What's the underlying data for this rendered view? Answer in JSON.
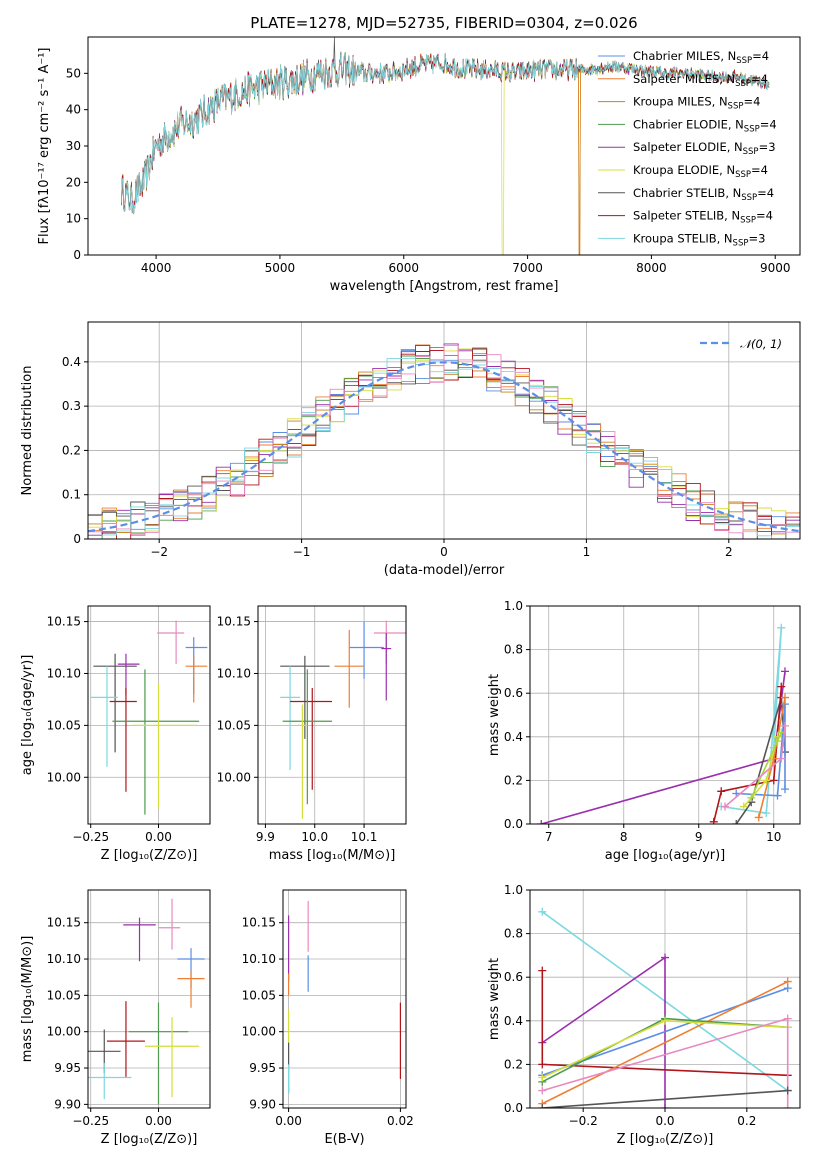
{
  "colors": {
    "Chabrier MILES": "#5b8ee6",
    "Salpeter MILES": "#ee7f33",
    "Kroupa MILES": "#c9821e",
    "Chabrier ELODIE": "#4e9a4e",
    "Salpeter ELODIE": "#9b2fae",
    "Kroupa ELODIE": "#d4de3c",
    "Chabrier STELIB": "#555555",
    "Salpeter STELIB": "#b0151b",
    "Kroupa STELIB": "#7dd8e0",
    "pink": "#e88ac0",
    "lime": "#a6d83a"
  },
  "chart_data": [
    {
      "id": "spectrum",
      "type": "line",
      "title": "PLATE=1278, MJD=52735, FIBERID=0304, z=0.026",
      "xlabel": "wavelength [Angstrom, rest frame]",
      "ylabel": "Flux [fλ10⁻¹⁷ erg cm⁻² s⁻¹ A⁻¹]",
      "xlim": [
        3450,
        9200
      ],
      "ylim": [
        0,
        60
      ],
      "xticks": [
        4000,
        5000,
        6000,
        7000,
        8000,
        9000
      ],
      "yticks": [
        0,
        10,
        20,
        30,
        40,
        50
      ],
      "legend_position": "top-right",
      "legend": [
        "Chabrier MILES, N_SSP=4",
        "Salpeter MILES, N_SSP=4",
        "Kroupa MILES, N_SSP=4",
        "Chabrier ELODIE, N_SSP=4",
        "Salpeter ELODIE, N_SSP=3",
        "Kroupa ELODIE, N_SSP=4",
        "Chabrier STELIB, N_SSP=4",
        "Salpeter STELIB, N_SSP=4",
        "Kroupa STELIB, N_SSP=3"
      ],
      "continuum": {
        "x": [
          3720,
          3800,
          3900,
          4000,
          4100,
          4200,
          4300,
          4500,
          4700,
          4900,
          5100,
          5300,
          5500,
          5700,
          5900,
          6100,
          6300,
          6500,
          6700,
          6900,
          7100,
          7300,
          7500,
          7700,
          7900,
          8100,
          8300,
          8500,
          8700,
          8950
        ],
        "y": [
          18,
          15,
          20,
          30,
          33,
          36,
          37,
          42,
          45,
          47,
          48,
          50,
          51,
          50,
          50,
          52,
          53,
          51,
          51,
          50,
          51,
          51,
          51,
          52,
          51,
          50,
          50,
          49,
          49,
          47
        ]
      }
    },
    {
      "id": "residuals",
      "type": "histogram",
      "xlabel": "(data-model)/error",
      "ylabel": "Normed distribution",
      "xlim": [
        -2.5,
        2.5
      ],
      "ylim": [
        0,
        0.49
      ],
      "xticks": [
        -2,
        -1,
        0,
        1,
        2
      ],
      "yticks": [
        0.0,
        0.1,
        0.2,
        0.3,
        0.4
      ],
      "legend_position": "top-right",
      "reference_curve": "N(0,1)",
      "legend_label": "𝒩(0, 1)"
    },
    {
      "id": "age-vs-Z",
      "type": "scatter",
      "xlabel": "Z [log₁₀(Z/Z⊙)]",
      "ylabel": "age  [log₁₀(age/yr)]",
      "xlim": [
        -0.26,
        0.19
      ],
      "ylim": [
        9.955,
        10.165
      ],
      "xticks": [
        -0.25,
        0.0
      ],
      "xticklabels": [
        "−0.25",
        "0.00"
      ],
      "yticks": [
        10.0,
        10.05,
        10.1,
        10.15
      ],
      "yticklabels": [
        "10.00",
        "10.05",
        "10.10",
        "10.15"
      ],
      "points": [
        {
          "c": "Chabrier MILES",
          "x": 0.13,
          "y": 10.125,
          "ex": [
            0.03,
            0.05
          ],
          "ey": [
            0.045,
            0.01
          ]
        },
        {
          "c": "Salpeter MILES",
          "x": 0.13,
          "y": 10.107,
          "ex": [
            0.03,
            0.05
          ],
          "ey": [
            0.035,
            0.01
          ]
        },
        {
          "c": "pink",
          "x": 0.065,
          "y": 10.139,
          "ex": [
            0.07,
            0.03
          ],
          "ey": [
            0.03,
            0.012
          ]
        },
        {
          "c": "Chabrier STELIB",
          "x": -0.16,
          "y": 10.107,
          "ex": [
            0.08,
            0.08
          ],
          "ey": [
            0.083,
            0.012
          ]
        },
        {
          "c": "Salpeter ELODIE",
          "x": -0.12,
          "y": 10.109,
          "ex": [
            0.03,
            0.05
          ],
          "ey": [
            0.03,
            0.01
          ]
        },
        {
          "c": "Kroupa STELIB",
          "x": -0.19,
          "y": 10.077,
          "ex": [
            0.06,
            0.04
          ],
          "ey": [
            0.067,
            0.03
          ]
        },
        {
          "c": "Salpeter STELIB",
          "x": -0.12,
          "y": 10.073,
          "ex": [
            0.06,
            0.04
          ],
          "ey": [
            0.087,
            0.013
          ]
        },
        {
          "c": "Chabrier ELODIE",
          "x": -0.05,
          "y": 10.054,
          "ex": [
            0.12,
            0.2
          ],
          "ey": [
            0.09,
            0.05
          ]
        },
        {
          "c": "Kroupa ELODIE",
          "x": 0.0,
          "y": 10.05,
          "ex": [
            0.1,
            0.14
          ],
          "ey": [
            0.08,
            0.04
          ]
        }
      ]
    },
    {
      "id": "age-vs-mass",
      "type": "scatter",
      "xlabel": "mass [log₁₀(M/M⊙)]",
      "ylabel": "",
      "xlim": [
        9.885,
        10.185
      ],
      "ylim": [
        9.955,
        10.165
      ],
      "xticks": [
        9.9,
        10.0,
        10.1
      ],
      "xticklabels": [
        "9.9",
        "10.0",
        "10.1"
      ],
      "yticks": [
        10.0,
        10.05,
        10.1,
        10.15
      ],
      "yticklabels": [
        "10.00",
        "10.05",
        "10.10",
        "10.15"
      ],
      "points": [
        {
          "c": "pink",
          "x": 10.145,
          "y": 10.139,
          "ex": [
            0.025,
            0.04
          ],
          "ey": [
            0.03,
            0.012
          ]
        },
        {
          "c": "Chabrier MILES",
          "x": 10.1,
          "y": 10.125,
          "ex": [
            0.03,
            0.04
          ],
          "ey": [
            0.03,
            0.025
          ]
        },
        {
          "c": "Salpeter ELODIE",
          "x": 10.145,
          "y": 10.124,
          "ex": [
            0.01,
            0.01
          ],
          "ey": [
            0.05,
            0.015
          ]
        },
        {
          "c": "Salpeter MILES",
          "x": 10.07,
          "y": 10.107,
          "ex": [
            0.03,
            0.03
          ],
          "ey": [
            0.04,
            0.035
          ]
        },
        {
          "c": "Chabrier STELIB",
          "x": 9.98,
          "y": 10.107,
          "ex": [
            0.05,
            0.05
          ],
          "ey": [
            0.07,
            0.01
          ]
        },
        {
          "c": "Kroupa STELIB",
          "x": 9.95,
          "y": 10.077,
          "ex": [
            0.02,
            0.02
          ],
          "ey": [
            0.07,
            0.03
          ]
        },
        {
          "c": "Salpeter STELIB",
          "x": 9.995,
          "y": 10.073,
          "ex": [
            0.045,
            0.04
          ],
          "ey": [
            0.085,
            0.013
          ]
        },
        {
          "c": "Chabrier ELODIE",
          "x": 9.985,
          "y": 10.054,
          "ex": [
            0.05,
            0.05
          ],
          "ey": [
            0.08,
            0.05
          ]
        },
        {
          "c": "Kroupa ELODIE",
          "x": 9.975,
          "y": 10.05,
          "ex": [
            0.01,
            0.01
          ],
          "ey": [
            0.09,
            0.02
          ]
        }
      ]
    },
    {
      "id": "weight-vs-age",
      "type": "line",
      "xlabel": "age  [log₁₀(age/yr)]",
      "ylabel": "mass weight",
      "xlim": [
        6.75,
        10.35
      ],
      "ylim": [
        0,
        1.0
      ],
      "xticks": [
        7,
        8,
        9,
        10
      ],
      "yticks": [
        0.0,
        0.2,
        0.4,
        0.6,
        0.8,
        1.0
      ],
      "yticklabels": [
        "0.0",
        "0.2",
        "0.4",
        "0.6",
        "0.8",
        "1.0"
      ],
      "series": [
        {
          "c": "Salpeter ELODIE",
          "x": [
            6.9,
            10.0,
            10.15
          ],
          "y": [
            0.0,
            0.3,
            0.7
          ]
        },
        {
          "c": "Kroupa STELIB",
          "x": [
            9.3,
            9.9,
            10.1,
            10.0
          ],
          "y": [
            0.08,
            0.05,
            0.9,
            0.35
          ]
        },
        {
          "c": "Chabrier STELIB",
          "x": [
            9.5,
            9.7,
            10.1,
            10.15
          ],
          "y": [
            0.0,
            0.1,
            0.58,
            0.33
          ]
        },
        {
          "c": "Salpeter STELIB",
          "x": [
            9.2,
            9.3,
            10.0,
            10.1
          ],
          "y": [
            0.01,
            0.15,
            0.2,
            0.63
          ]
        },
        {
          "c": "Chabrier MILES",
          "x": [
            9.5,
            10.05,
            10.15,
            10.15
          ],
          "y": [
            0.14,
            0.13,
            0.55,
            0.16
          ]
        },
        {
          "c": "Salpeter MILES",
          "x": [
            9.8,
            10.0,
            10.15
          ],
          "y": [
            0.03,
            0.3,
            0.58
          ]
        },
        {
          "c": "Kroupa ELODIE",
          "x": [
            9.6,
            9.9,
            10.05
          ],
          "y": [
            0.08,
            0.2,
            0.4
          ]
        },
        {
          "c": "lime",
          "x": [
            9.7,
            10.05,
            10.1
          ],
          "y": [
            0.12,
            0.38,
            0.42
          ]
        },
        {
          "c": "pink",
          "x": [
            9.35,
            10.1,
            10.15
          ],
          "y": [
            0.08,
            0.3,
            0.45
          ]
        }
      ]
    },
    {
      "id": "mass-vs-Z",
      "type": "scatter",
      "xlabel": "Z [log₁₀(Z/Z⊙)]",
      "ylabel": "mass [log₁₀(M/M⊙)]",
      "xlim": [
        -0.26,
        0.19
      ],
      "ylim": [
        9.895,
        10.195
      ],
      "xticks": [
        -0.25,
        0.0
      ],
      "xticklabels": [
        "−0.25",
        "0.00"
      ],
      "yticks": [
        9.9,
        9.95,
        10.0,
        10.05,
        10.1,
        10.15
      ],
      "yticklabels": [
        "9.90",
        "9.95",
        "10.00",
        "10.05",
        "10.10",
        "10.15"
      ],
      "points": [
        {
          "c": "Salpeter ELODIE",
          "x": -0.07,
          "y": 10.147,
          "ex": [
            0.06,
            0.06
          ],
          "ey": [
            0.05,
            0.01
          ]
        },
        {
          "c": "pink",
          "x": 0.05,
          "y": 10.143,
          "ex": [
            0.05,
            0.03
          ],
          "ey": [
            0.03,
            0.04
          ]
        },
        {
          "c": "Chabrier MILES",
          "x": 0.12,
          "y": 10.1,
          "ex": [
            0.05,
            0.05
          ],
          "ey": [
            0.04,
            0.015
          ]
        },
        {
          "c": "Salpeter MILES",
          "x": 0.12,
          "y": 10.073,
          "ex": [
            0.05,
            0.05
          ],
          "ey": [
            0.04,
            0.01
          ]
        },
        {
          "c": "Chabrier ELODIE",
          "x": 0.0,
          "y": 10.0,
          "ex": [
            0.11,
            0.11
          ],
          "ey": [
            0.1,
            0.04
          ]
        },
        {
          "c": "Kroupa ELODIE",
          "x": 0.05,
          "y": 9.98,
          "ex": [
            0.1,
            0.1
          ],
          "ey": [
            0.07,
            0.04
          ]
        },
        {
          "c": "Salpeter STELIB",
          "x": -0.12,
          "y": 9.987,
          "ex": [
            0.07,
            0.07
          ],
          "ey": [
            0.05,
            0.055
          ]
        },
        {
          "c": "Chabrier STELIB",
          "x": -0.2,
          "y": 9.973,
          "ex": [
            0.12,
            0.06
          ],
          "ey": [
            0.03,
            0.03
          ]
        },
        {
          "c": "Kroupa STELIB",
          "x": -0.2,
          "y": 9.937,
          "ex": [
            0.06,
            0.1
          ],
          "ey": [
            0.03,
            0.02
          ]
        }
      ]
    },
    {
      "id": "mass-vs-EBV",
      "type": "scatter",
      "xlabel": "E(B-V)",
      "ylabel": "",
      "xlim": [
        -0.001,
        0.021
      ],
      "ylim": [
        9.895,
        10.195
      ],
      "xticks": [
        0.0,
        0.02
      ],
      "xticklabels": [
        "0.00",
        "0.02"
      ],
      "yticks": [
        9.9,
        9.95,
        10.0,
        10.05,
        10.1,
        10.15
      ],
      "yticklabels": [
        "9.90",
        "9.95",
        "10.00",
        "10.05",
        "10.10",
        "10.15"
      ],
      "points": [
        {
          "c": "pink",
          "x": 0.0035,
          "y": 10.16,
          "ex": [
            0,
            0
          ],
          "ey": [
            0.05,
            0.02
          ]
        },
        {
          "c": "Salpeter ELODIE",
          "x": 0.0,
          "y": 10.12,
          "ex": [
            0,
            0
          ],
          "ey": [
            0.05,
            0.04
          ]
        },
        {
          "c": "Chabrier MILES",
          "x": 0.0035,
          "y": 10.085,
          "ex": [
            0,
            0
          ],
          "ey": [
            0.03,
            0.02
          ]
        },
        {
          "c": "Salpeter MILES",
          "x": 0.0,
          "y": 10.07,
          "ex": [
            0,
            0
          ],
          "ey": [
            0.02,
            0.01
          ]
        },
        {
          "c": "Kroupa ELODIE",
          "x": 0.0,
          "y": 10.0,
          "ex": [
            0,
            0
          ],
          "ey": [
            0.05,
            0.03
          ]
        },
        {
          "c": "Chabrier STELIB",
          "x": 0.0,
          "y": 9.965,
          "ex": [
            0,
            0
          ],
          "ey": [
            0.05,
            0.02
          ]
        },
        {
          "c": "Kroupa STELIB",
          "x": 0.0,
          "y": 9.935,
          "ex": [
            0,
            0
          ],
          "ey": [
            0.02,
            0.02
          ]
        },
        {
          "c": "Salpeter STELIB",
          "x": 0.02,
          "y": 9.99,
          "ex": [
            0,
            0
          ],
          "ey": [
            0.055,
            0.05
          ]
        }
      ]
    },
    {
      "id": "weight-vs-Z",
      "type": "line",
      "xlabel": "Z [log₁₀(Z/Z⊙)]",
      "ylabel": "mass weight",
      "xlim": [
        -0.33,
        0.33
      ],
      "ylim": [
        0,
        1.0
      ],
      "xticks": [
        -0.2,
        0.0,
        0.2
      ],
      "xticklabels": [
        "−0.2",
        "0.0",
        "0.2"
      ],
      "yticks": [
        0.0,
        0.2,
        0.4,
        0.6,
        0.8,
        1.0
      ],
      "yticklabels": [
        "0.0",
        "0.2",
        "0.4",
        "0.6",
        "0.8",
        "1.0"
      ],
      "series": [
        {
          "c": "Kroupa STELIB",
          "x": [
            -0.3,
            0.3
          ],
          "y": [
            0.9,
            0.08
          ]
        },
        {
          "c": "Salpeter ELODIE",
          "x": [
            -0.3,
            0.0,
            0.0
          ],
          "y": [
            0.3,
            0.69,
            0.0
          ]
        },
        {
          "c": "Salpeter STELIB",
          "x": [
            -0.3,
            -0.3,
            0.3
          ],
          "y": [
            0.63,
            0.2,
            0.15
          ]
        },
        {
          "c": "Chabrier MILES",
          "x": [
            -0.3,
            0.3
          ],
          "y": [
            0.15,
            0.55
          ]
        },
        {
          "c": "Salpeter MILES",
          "x": [
            -0.3,
            0.3
          ],
          "y": [
            0.02,
            0.58
          ]
        },
        {
          "c": "Chabrier ELODIE",
          "x": [
            -0.3,
            0.0,
            0.3
          ],
          "y": [
            0.12,
            0.41,
            0.37
          ]
        },
        {
          "c": "Kroupa ELODIE",
          "x": [
            -0.3,
            0.0,
            0.3
          ],
          "y": [
            0.14,
            0.4,
            0.37
          ]
        },
        {
          "c": "pink",
          "x": [
            -0.3,
            0.3,
            0.3
          ],
          "y": [
            0.08,
            0.41,
            0.0
          ]
        },
        {
          "c": "Chabrier STELIB",
          "x": [
            -0.3,
            0.3
          ],
          "y": [
            0.0,
            0.08
          ]
        }
      ]
    }
  ]
}
